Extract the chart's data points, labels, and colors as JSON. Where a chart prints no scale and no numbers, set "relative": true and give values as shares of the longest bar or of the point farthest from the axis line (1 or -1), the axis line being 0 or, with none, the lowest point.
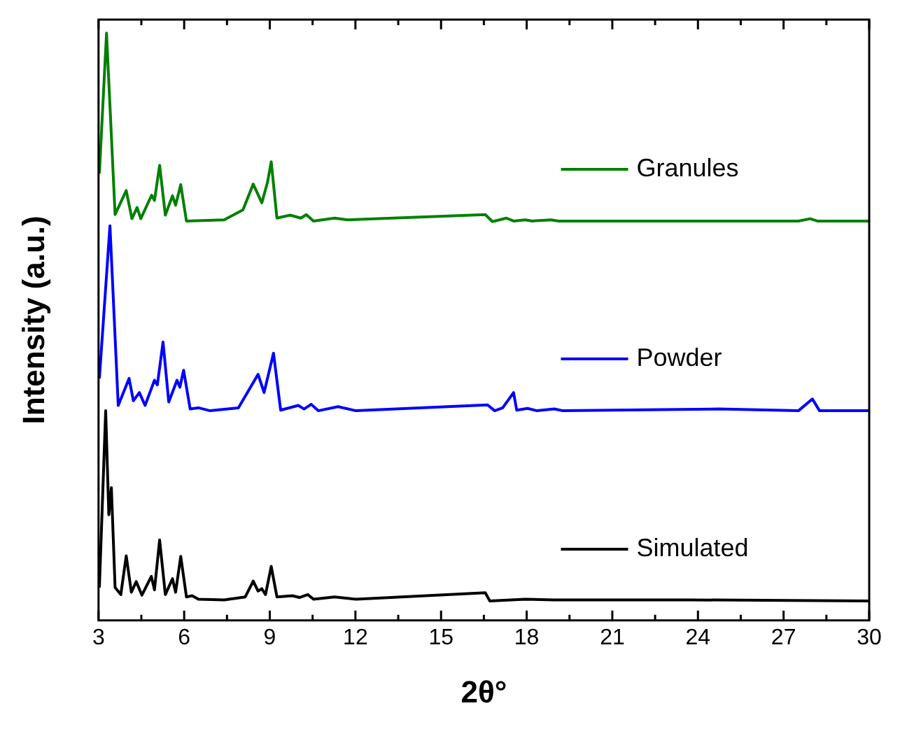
{
  "chart_data": {
    "type": "line",
    "xlabel": "2θ°",
    "ylabel": "Intensity (a.u.)",
    "relative": true,
    "xlim": [
      3,
      30
    ],
    "xticks": [
      3,
      {
        "value": 4.5,
        "label": null
      },
      6,
      {
        "value": 7.5,
        "label": null
      },
      9,
      {
        "value": 10.5,
        "label": null
      },
      12,
      {
        "value": 13.5,
        "label": null
      },
      15,
      {
        "value": 16.5,
        "label": null
      },
      18,
      {
        "value": 19.5,
        "label": null
      },
      21,
      {
        "value": 22.5,
        "label": null
      },
      24,
      {
        "value": 25.5,
        "label": null
      },
      27,
      {
        "value": 28.5,
        "label": null
      },
      30
    ],
    "grid": false,
    "legend": "right",
    "marker": "none",
    "line_style": "solid",
    "series": [
      {
        "name": "Granules",
        "color": "#008000",
        "x": [
          3.03,
          3.28,
          3.58,
          3.97,
          4.17,
          4.35,
          4.48,
          4.86,
          4.96,
          5.14,
          5.34,
          5.59,
          5.7,
          5.88,
          6.08,
          7.4,
          8.06,
          8.42,
          8.72,
          8.92,
          9.05,
          9.25,
          9.71,
          10.09,
          10.28,
          10.53,
          11.27,
          11.72,
          16.55,
          16.8,
          17.29,
          17.54,
          17.95,
          18.2,
          18.86,
          19.11,
          27.52,
          27.93,
          28.18,
          30
        ],
        "values": [
          0.761,
          1.0,
          0.691,
          0.732,
          0.684,
          0.703,
          0.684,
          0.724,
          0.715,
          0.775,
          0.69,
          0.723,
          0.707,
          0.742,
          0.68,
          0.682,
          0.699,
          0.743,
          0.711,
          0.746,
          0.781,
          0.685,
          0.69,
          0.685,
          0.691,
          0.68,
          0.685,
          0.682,
          0.691,
          0.679,
          0.685,
          0.68,
          0.682,
          0.68,
          0.682,
          0.68,
          0.68,
          0.684,
          0.68,
          0.68
        ]
      },
      {
        "name": "Powder",
        "color": "#0000ff",
        "x": [
          3.03,
          3.4,
          3.69,
          4.07,
          4.22,
          4.43,
          4.63,
          4.96,
          5.06,
          5.26,
          5.46,
          5.75,
          5.85,
          5.98,
          6.21,
          6.5,
          6.91,
          7.9,
          8.59,
          8.8,
          9.13,
          9.38,
          10.0,
          10.2,
          10.45,
          10.7,
          11.39,
          12.02,
          16.63,
          16.88,
          17.16,
          17.54,
          17.65,
          18.03,
          18.36,
          18.97,
          19.27,
          24.71,
          27.52,
          28.01,
          28.26,
          30
        ],
        "values": [
          0.412,
          0.672,
          0.366,
          0.412,
          0.374,
          0.388,
          0.366,
          0.409,
          0.401,
          0.474,
          0.372,
          0.409,
          0.397,
          0.426,
          0.36,
          0.362,
          0.357,
          0.362,
          0.419,
          0.388,
          0.455,
          0.358,
          0.366,
          0.36,
          0.368,
          0.357,
          0.364,
          0.357,
          0.367,
          0.357,
          0.362,
          0.388,
          0.358,
          0.361,
          0.357,
          0.36,
          0.357,
          0.36,
          0.357,
          0.377,
          0.357,
          0.357
        ]
      },
      {
        "name": "Simulated",
        "color": "#000000",
        "x": [
          3.03,
          3.25,
          3.36,
          3.45,
          3.58,
          3.78,
          3.97,
          4.15,
          4.32,
          4.52,
          4.85,
          4.96,
          5.14,
          5.34,
          5.59,
          5.7,
          5.88,
          6.08,
          6.28,
          6.5,
          7.4,
          8.14,
          8.42,
          8.59,
          8.72,
          8.85,
          9.05,
          9.25,
          9.79,
          10.04,
          10.33,
          10.53,
          11.27,
          12.02,
          16.55,
          16.71,
          17.95,
          18.94,
          23.72,
          30
        ],
        "values": [
          0.056,
          0.357,
          0.18,
          0.226,
          0.056,
          0.044,
          0.11,
          0.048,
          0.066,
          0.043,
          0.075,
          0.052,
          0.137,
          0.044,
          0.071,
          0.048,
          0.109,
          0.04,
          0.042,
          0.036,
          0.035,
          0.04,
          0.067,
          0.05,
          0.054,
          0.044,
          0.092,
          0.04,
          0.042,
          0.039,
          0.044,
          0.036,
          0.04,
          0.036,
          0.047,
          0.033,
          0.036,
          0.035,
          0.035,
          0.033
        ]
      }
    ]
  }
}
